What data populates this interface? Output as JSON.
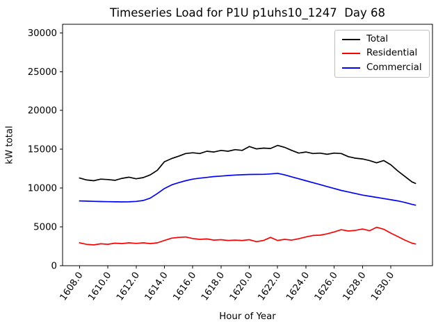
{
  "chart_data": {
    "type": "line",
    "title": "Timeseries Load for P1U p1uhs10_1247  Day 68",
    "xlabel": "Hour of Year",
    "ylabel": "kW total",
    "xlim": [
      1606.8,
      1632.95
    ],
    "ylim": [
      0,
      31100
    ],
    "grid": false,
    "legend_position": "upper right",
    "xticks": {
      "values": [
        1608,
        1610,
        1612,
        1614,
        1616,
        1618,
        1620,
        1622,
        1624,
        1626,
        1628,
        1630
      ],
      "labels": [
        "1608.0",
        "1610.0",
        "1612.0",
        "1614.0",
        "1616.0",
        "1618.0",
        "1620.0",
        "1622.0",
        "1624.0",
        "1626.0",
        "1628.0",
        "1630.0"
      ]
    },
    "yticks": {
      "values": [
        0,
        5000,
        10000,
        15000,
        20000,
        25000,
        30000
      ],
      "labels": [
        "0",
        "5000",
        "10000",
        "15000",
        "20000",
        "25000",
        "30000"
      ]
    },
    "x": [
      1608.0,
      1608.5,
      1609.0,
      1609.5,
      1610.0,
      1610.5,
      1611.0,
      1611.5,
      1612.0,
      1612.5,
      1613.0,
      1613.5,
      1614.0,
      1614.5,
      1615.0,
      1615.5,
      1616.0,
      1616.5,
      1617.0,
      1617.5,
      1618.0,
      1618.5,
      1619.0,
      1619.5,
      1620.0,
      1620.5,
      1621.0,
      1621.5,
      1622.0,
      1622.5,
      1623.0,
      1623.5,
      1624.0,
      1624.5,
      1625.0,
      1625.5,
      1626.0,
      1626.5,
      1627.0,
      1627.5,
      1628.0,
      1628.5,
      1629.0,
      1629.5,
      1630.0,
      1630.5,
      1631.0,
      1631.5,
      1631.75
    ],
    "series": [
      {
        "name": "Total",
        "color": "#000000",
        "values": [
          11300,
          11050,
          10950,
          11150,
          11100,
          11000,
          11250,
          11400,
          11200,
          11350,
          11700,
          12300,
          13400,
          13800,
          14100,
          14450,
          14550,
          14450,
          14750,
          14650,
          14850,
          14750,
          14950,
          14850,
          15350,
          15050,
          15150,
          15100,
          15500,
          15250,
          14850,
          14500,
          14650,
          14450,
          14500,
          14350,
          14500,
          14450,
          14050,
          13850,
          13750,
          13550,
          13250,
          13550,
          13000,
          12200,
          11500,
          10800,
          10600
        ]
      },
      {
        "name": "Residential",
        "color": "#ff0000",
        "values": [
          2950,
          2750,
          2680,
          2820,
          2760,
          2900,
          2850,
          2950,
          2880,
          2950,
          2850,
          2950,
          3250,
          3550,
          3650,
          3700,
          3500,
          3400,
          3450,
          3300,
          3350,
          3250,
          3300,
          3250,
          3350,
          3100,
          3250,
          3650,
          3250,
          3400,
          3300,
          3480,
          3700,
          3900,
          3930,
          4100,
          4350,
          4640,
          4470,
          4550,
          4730,
          4500,
          4950,
          4700,
          4200,
          3750,
          3300,
          2900,
          2800
        ]
      },
      {
        "name": "Commercial",
        "color": "#0000ff",
        "values": [
          8350,
          8320,
          8290,
          8270,
          8250,
          8230,
          8220,
          8230,
          8280,
          8400,
          8700,
          9300,
          9950,
          10400,
          10700,
          10950,
          11150,
          11280,
          11380,
          11480,
          11550,
          11620,
          11680,
          11720,
          11750,
          11760,
          11770,
          11820,
          11900,
          11700,
          11450,
          11200,
          10950,
          10700,
          10450,
          10200,
          9950,
          9700,
          9500,
          9300,
          9100,
          8950,
          8800,
          8650,
          8500,
          8350,
          8150,
          7900,
          7800
        ]
      }
    ]
  }
}
